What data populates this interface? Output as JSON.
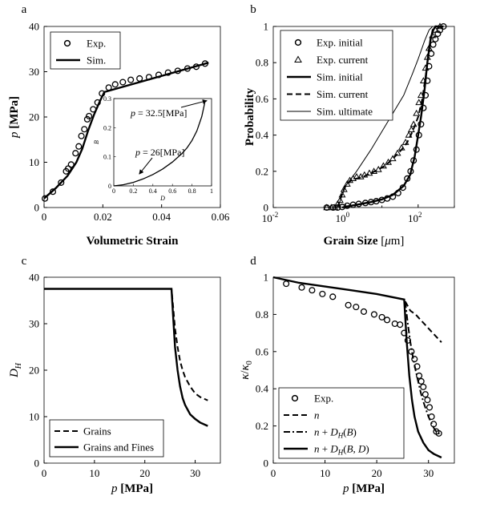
{
  "figure": {
    "panel_labels": [
      "a",
      "b",
      "c",
      "d"
    ]
  },
  "chart_data": [
    {
      "id": "a",
      "type": "scatter",
      "xlabel": "Volumetric Strain",
      "ylabel_var": "p",
      "ylabel_unit": "[MPa]",
      "xlim": [
        0,
        0.06
      ],
      "ylim": [
        0,
        40
      ],
      "xticks": [
        0,
        0.02,
        0.04,
        0.06
      ],
      "xtick_labels": [
        "0",
        "0.02",
        "0.04",
        "0.06"
      ],
      "yticks": [
        0,
        10,
        20,
        30,
        40
      ],
      "ytick_labels": [
        "0",
        "10",
        "20",
        "30",
        "40"
      ],
      "legend": [
        "Exp.",
        "Sim."
      ],
      "legend_position": "top-left",
      "series": [
        {
          "name": "Exp.",
          "style": "circle",
          "x": [
            0.0003,
            0.003,
            0.0058,
            0.0075,
            0.0082,
            0.0092,
            0.0107,
            0.0118,
            0.0127,
            0.0137,
            0.0147,
            0.0153,
            0.0167,
            0.0182,
            0.0197,
            0.022,
            0.0242,
            0.0268,
            0.0295,
            0.0325,
            0.0357,
            0.039,
            0.0422,
            0.0455,
            0.0488,
            0.0518,
            0.0548
          ],
          "y": [
            2,
            3.5,
            5.5,
            8,
            8.6,
            9.5,
            12,
            13.5,
            15.8,
            17.3,
            19.5,
            20.2,
            21.7,
            23.2,
            25.2,
            26.5,
            27.2,
            27.7,
            28.2,
            28.5,
            28.8,
            29.3,
            29.8,
            30.2,
            30.7,
            31.1,
            31.8
          ]
        },
        {
          "name": "Sim.",
          "style": "solid",
          "x": [
            0,
            0.004,
            0.008,
            0.011,
            0.013,
            0.015,
            0.017,
            0.019,
            0.0205,
            0.056
          ],
          "y": [
            2,
            4.3,
            7,
            10,
            13,
            17,
            20.5,
            23.5,
            25.5,
            32
          ]
        }
      ],
      "inset": {
        "xlabel": "D",
        "ylabel": "B",
        "xlim": [
          0,
          1
        ],
        "ylim": [
          0,
          0.3
        ],
        "xticks": [
          0,
          0.2,
          0.4,
          0.6,
          0.8,
          1
        ],
        "xtick_labels": [
          "0",
          "0.2",
          "0.4",
          "0.6",
          "0.8",
          "1"
        ],
        "yticks": [
          0,
          0.1,
          0.2,
          0.3
        ],
        "ytick_labels": [
          "0",
          "0.1",
          "0.2",
          "0.3"
        ],
        "curve": {
          "x": [
            0,
            0.1,
            0.2,
            0.3,
            0.4,
            0.5,
            0.6,
            0.7,
            0.75,
            0.8,
            0.85,
            0.9,
            0.93
          ],
          "y": [
            0,
            0.004,
            0.012,
            0.024,
            0.039,
            0.058,
            0.082,
            0.112,
            0.131,
            0.156,
            0.189,
            0.238,
            0.285
          ]
        },
        "annotations": [
          {
            "text_var": "p",
            "text_rest": " = 26[MPa]",
            "x": 0.26,
            "y": 0.035
          },
          {
            "text_var": "p",
            "text_rest": " = 32.5[MPa]",
            "x": 0.92,
            "y": 0.29
          }
        ]
      }
    },
    {
      "id": "b",
      "type": "line",
      "xlabel_text": "Grain Size ",
      "xlabel_unit": "[",
      "xlabel_mu": "μ",
      "xlabel_tail": "m]",
      "ylabel": "Probability",
      "xscale": "log",
      "xlim": [
        0.01,
        1000
      ],
      "ylim": [
        0,
        1
      ],
      "xtick_exps": [
        "-2",
        "0",
        "2"
      ],
      "xtick_values": [
        0.01,
        1,
        100
      ],
      "xtick_base": "10",
      "yticks": [
        0,
        0.2,
        0.4,
        0.6,
        0.8,
        1
      ],
      "ytick_labels": [
        "0",
        "0.2",
        "0.4",
        "0.6",
        "0.8",
        "1"
      ],
      "legend": [
        "Exp. initial",
        "Exp. current",
        "Sim. initial",
        "Sim. current",
        "Sim. ultimate"
      ],
      "legend_position": "top-left",
      "series": [
        {
          "name": "Exp. initial",
          "style": "circle",
          "x": [
            0.3,
            0.45,
            0.6,
            0.8,
            1.1,
            1.6,
            2.3,
            3.5,
            5,
            7,
            10,
            14,
            20,
            28,
            38,
            50,
            62,
            75,
            90,
            105,
            120,
            140,
            160,
            180,
            200,
            230,
            260,
            300,
            350,
            400,
            500
          ],
          "y": [
            0,
            0,
            0,
            0.003,
            0.01,
            0.015,
            0.02,
            0.025,
            0.03,
            0.035,
            0.042,
            0.05,
            0.06,
            0.08,
            0.11,
            0.16,
            0.2,
            0.26,
            0.32,
            0.4,
            0.46,
            0.55,
            0.62,
            0.7,
            0.78,
            0.85,
            0.9,
            0.93,
            0.96,
            0.98,
            1.0
          ]
        },
        {
          "name": "Exp. current",
          "style": "triangle",
          "x": [
            0.3,
            0.4,
            0.5,
            0.6,
            0.7,
            0.8,
            0.9,
            1.1,
            1.3,
            1.6,
            2,
            2.6,
            3.3,
            4.5,
            6,
            8,
            11,
            15,
            20,
            27,
            35,
            45,
            55,
            65,
            75,
            90,
            105,
            120,
            140,
            160,
            180,
            200,
            250,
            300,
            400
          ],
          "y": [
            0,
            0,
            0,
            0.02,
            0.04,
            0.07,
            0.1,
            0.13,
            0.15,
            0.16,
            0.17,
            0.17,
            0.18,
            0.19,
            0.2,
            0.21,
            0.23,
            0.25,
            0.27,
            0.3,
            0.33,
            0.36,
            0.4,
            0.43,
            0.46,
            0.52,
            0.58,
            0.62,
            0.7,
            0.77,
            0.83,
            0.88,
            0.95,
            0.98,
            1.0
          ]
        },
        {
          "name": "Sim. initial",
          "style": "solid",
          "x": [
            0.8,
            1,
            2,
            5,
            10,
            20,
            40,
            60,
            80,
            100,
            120,
            150,
            180,
            220,
            260,
            300,
            350,
            400,
            500
          ],
          "y": [
            0,
            0.005,
            0.015,
            0.03,
            0.045,
            0.07,
            0.12,
            0.18,
            0.28,
            0.4,
            0.5,
            0.65,
            0.8,
            0.93,
            0.98,
            1,
            1,
            1,
            1
          ]
        },
        {
          "name": "Sim. current",
          "style": "dashed",
          "x": [
            0.6,
            0.8,
            1,
            1.4,
            2,
            3,
            5,
            8,
            12,
            18,
            25,
            35,
            50,
            70,
            100,
            130,
            160,
            200,
            250,
            300
          ],
          "y": [
            0,
            0.08,
            0.12,
            0.15,
            0.16,
            0.17,
            0.19,
            0.21,
            0.23,
            0.26,
            0.29,
            0.32,
            0.36,
            0.42,
            0.5,
            0.6,
            0.72,
            0.88,
            0.98,
            1.0
          ]
        },
        {
          "name": "Sim. ultimate",
          "style": "thin",
          "x": [
            0.6,
            1,
            2,
            5,
            10,
            20,
            40,
            70,
            100,
            150,
            200,
            250
          ],
          "y": [
            0,
            0.12,
            0.2,
            0.32,
            0.42,
            0.52,
            0.62,
            0.74,
            0.82,
            0.92,
            0.98,
            1.0
          ]
        }
      ]
    },
    {
      "id": "c",
      "type": "line",
      "xlabel_var": "p",
      "xlabel_unit": "[MPa]",
      "ylabel_var": "D",
      "ylabel_sub": "H",
      "xlim": [
        0,
        35
      ],
      "ylim": [
        0,
        40
      ],
      "xticks": [
        0,
        10,
        20,
        30
      ],
      "xtick_labels": [
        "0",
        "10",
        "20",
        "30"
      ],
      "yticks": [
        0,
        10,
        20,
        30,
        40
      ],
      "ytick_labels": [
        "0",
        "10",
        "20",
        "30",
        "40"
      ],
      "legend": [
        "Grains",
        "Grains and Fines"
      ],
      "legend_position": "bottom-left",
      "series": [
        {
          "name": "Grains",
          "style": "dashed",
          "x": [
            0,
            25.3,
            25.6,
            26,
            26.5,
            27,
            27.5,
            28,
            29,
            30,
            31,
            32.5
          ],
          "y": [
            37.5,
            37.5,
            34,
            29,
            25,
            22,
            20,
            18.5,
            16.5,
            15,
            14.2,
            13.5
          ]
        },
        {
          "name": "Grains and Fines",
          "style": "solid",
          "x": [
            0,
            25.3,
            25.6,
            26,
            26.5,
            27,
            27.5,
            28,
            29,
            30,
            31,
            32.5
          ],
          "y": [
            37.5,
            37.5,
            32,
            25,
            20,
            16.5,
            14,
            12.5,
            10.5,
            9.5,
            8.7,
            8
          ]
        }
      ]
    },
    {
      "id": "d",
      "type": "line",
      "xlabel_var": "p",
      "xlabel_unit": "[MPa]",
      "ylabel": "κ/κ0",
      "ylabel_kappa": "κ",
      "ylabel_slash": "/",
      "ylabel_sub": "0",
      "xlim": [
        0,
        35
      ],
      "ylim": [
        0,
        1
      ],
      "xticks": [
        0,
        10,
        20,
        30
      ],
      "xtick_labels": [
        "0",
        "10",
        "20",
        "30"
      ],
      "yticks": [
        0,
        0.2,
        0.4,
        0.6,
        0.8,
        1
      ],
      "ytick_labels": [
        "0",
        "0.2",
        "0.4",
        "0.6",
        "0.8",
        "1"
      ],
      "legend": [
        "Exp.",
        "n",
        "n + D_H(B)",
        "n + D_H(B, D)"
      ],
      "legend_position": "bottom-left",
      "series": [
        {
          "name": "Exp.",
          "style": "circle",
          "x": [
            2.5,
            5.5,
            7.5,
            9.5,
            11.5,
            14.5,
            16,
            17.5,
            19.5,
            21,
            22,
            23.5,
            24.5,
            25.3,
            26,
            26.7,
            27.3,
            27.8,
            28.2,
            28.6,
            29,
            29.4,
            29.8,
            30.2,
            30.6,
            31,
            31.5,
            32
          ],
          "y": [
            0.965,
            0.945,
            0.93,
            0.91,
            0.895,
            0.85,
            0.84,
            0.815,
            0.8,
            0.785,
            0.77,
            0.75,
            0.745,
            0.7,
            0.66,
            0.6,
            0.56,
            0.52,
            0.47,
            0.44,
            0.41,
            0.37,
            0.34,
            0.3,
            0.25,
            0.21,
            0.17,
            0.16
          ]
        },
        {
          "name": "n",
          "style": "dashed",
          "x": [
            25.5,
            26.5,
            27.5,
            28.5,
            29.5,
            30.5,
            31.5,
            32.5
          ],
          "y": [
            0.87,
            0.82,
            0.8,
            0.77,
            0.74,
            0.71,
            0.68,
            0.65
          ]
        },
        {
          "name": "n + D_H(B)",
          "style": "dashdot",
          "x": [
            25.5,
            26,
            26.5,
            27,
            27.5,
            28,
            28.5,
            29,
            29.5,
            30,
            30.5,
            31,
            31.5,
            32.5
          ],
          "y": [
            0.87,
            0.75,
            0.65,
            0.57,
            0.5,
            0.44,
            0.38,
            0.33,
            0.29,
            0.25,
            0.22,
            0.19,
            0.17,
            0.15
          ]
        },
        {
          "name": "n + D_H(B, D)",
          "style": "solid",
          "x": [
            0,
            5,
            10,
            15,
            20,
            25.3,
            25.8,
            26.3,
            26.8,
            27.3,
            28,
            29,
            30,
            31,
            32.5
          ],
          "y": [
            1,
            0.97,
            0.95,
            0.93,
            0.91,
            0.88,
            0.65,
            0.47,
            0.34,
            0.25,
            0.17,
            0.11,
            0.07,
            0.05,
            0.03
          ]
        }
      ]
    }
  ]
}
